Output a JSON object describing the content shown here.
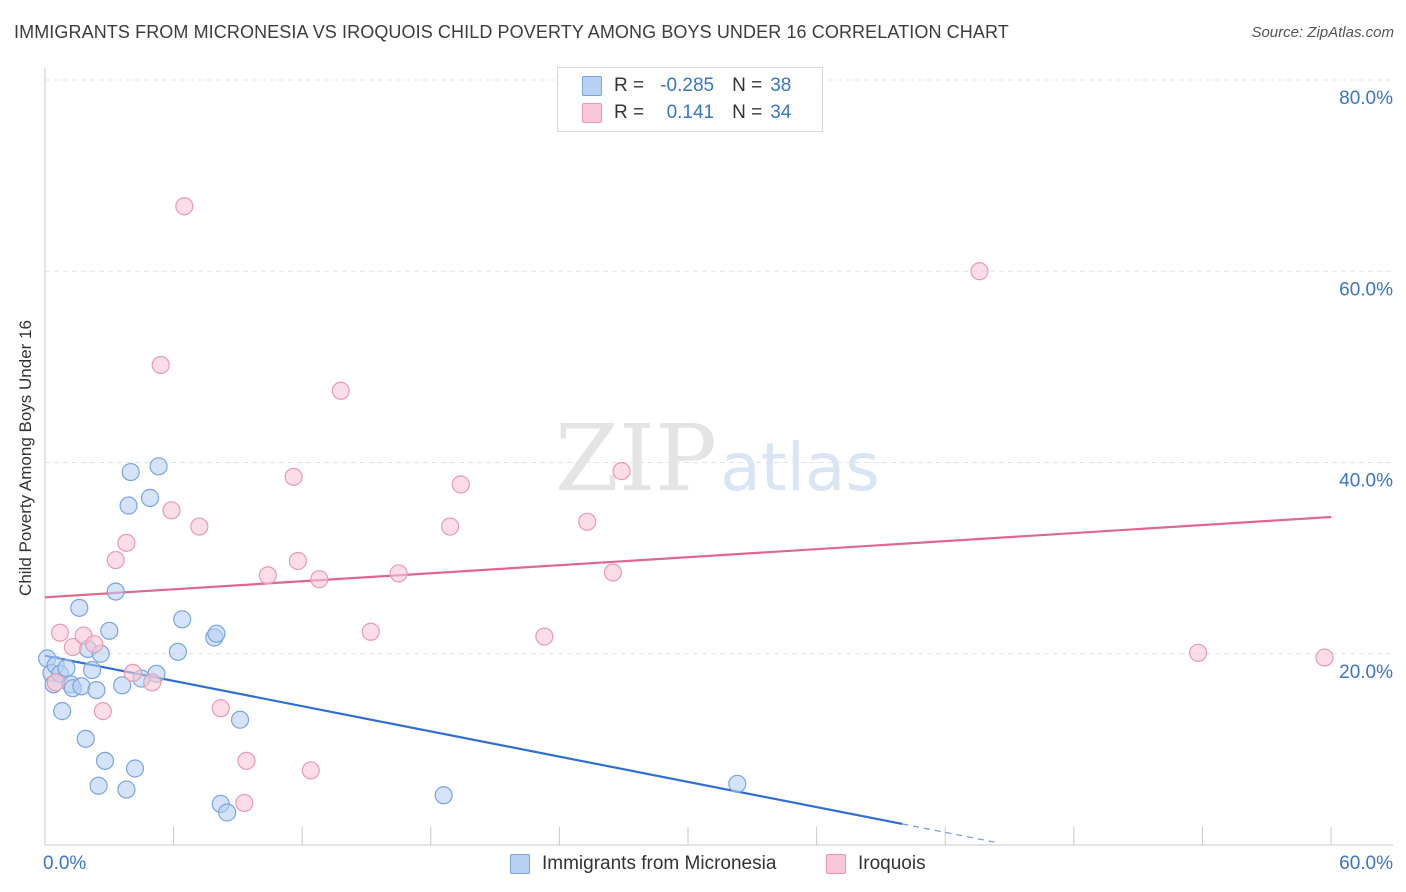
{
  "title": "IMMIGRANTS FROM MICRONESIA VS IROQUOIS CHILD POVERTY AMONG BOYS UNDER 16 CORRELATION CHART",
  "source": "Source: ZipAtlas.com",
  "watermark": {
    "zip": "ZIP",
    "atlas": "atlas"
  },
  "legend": {
    "r_label": "R =",
    "n_label": "N =",
    "rows": [
      {
        "r": "-0.285",
        "n": "38"
      },
      {
        "r": "0.141",
        "n": "34"
      }
    ]
  },
  "colors": {
    "blue_fill": "#b8d0f2",
    "blue_stroke": "#7aa4dc",
    "blue_line": "#2f6fd0",
    "pink_fill": "#f8c6d6",
    "pink_stroke": "#e89ab4",
    "pink_line": "#e0668e",
    "grid": "#e3e3e3",
    "tick_label": "#3a74c4"
  },
  "chart_data": {
    "type": "scatter",
    "title": "IMMIGRANTS FROM MICRONESIA VS IROQUOIS CHILD POVERTY AMONG BOYS UNDER 16 CORRELATION CHART",
    "xlabel": "",
    "ylabel": "Child Poverty Among Boys Under 16",
    "xlim": [
      0,
      60
    ],
    "ylim": [
      0,
      80
    ],
    "x_tick_labels": [
      "0.0%",
      "60.0%"
    ],
    "y_ticks": [
      {
        "value": 20,
        "label": "20.0%"
      },
      {
        "value": 40,
        "label": "40.0%"
      },
      {
        "value": 60,
        "label": "60.0%"
      },
      {
        "value": 80,
        "label": "80.0%"
      }
    ],
    "grid": true,
    "series": [
      {
        "name": "Immigrants from Micronesia",
        "color": "blue",
        "r": -0.285,
        "n": 38,
        "points": [
          [
            0.1,
            19.5
          ],
          [
            0.3,
            18.0
          ],
          [
            0.4,
            16.8
          ],
          [
            0.5,
            18.8
          ],
          [
            0.7,
            17.9
          ],
          [
            0.8,
            14.0
          ],
          [
            1.0,
            18.5
          ],
          [
            1.2,
            16.8
          ],
          [
            1.3,
            16.4
          ],
          [
            1.6,
            24.8
          ],
          [
            1.7,
            16.6
          ],
          [
            1.9,
            11.1
          ],
          [
            2.0,
            20.5
          ],
          [
            2.2,
            18.3
          ],
          [
            2.4,
            16.2
          ],
          [
            2.5,
            6.2
          ],
          [
            2.6,
            20.0
          ],
          [
            2.8,
            8.8
          ],
          [
            3.0,
            22.4
          ],
          [
            3.3,
            26.5
          ],
          [
            3.6,
            16.7
          ],
          [
            3.8,
            5.8
          ],
          [
            3.9,
            35.5
          ],
          [
            4.0,
            39.0
          ],
          [
            4.2,
            8.0
          ],
          [
            4.5,
            17.4
          ],
          [
            4.9,
            36.3
          ],
          [
            5.2,
            17.9
          ],
          [
            5.3,
            39.6
          ],
          [
            6.2,
            20.2
          ],
          [
            6.4,
            23.6
          ],
          [
            7.9,
            21.7
          ],
          [
            8.0,
            22.1
          ],
          [
            8.2,
            4.3
          ],
          [
            8.5,
            3.4
          ],
          [
            9.1,
            13.1
          ],
          [
            18.6,
            5.2
          ],
          [
            32.3,
            6.4
          ]
        ]
      },
      {
        "name": "Iroquois",
        "color": "pink",
        "r": 0.141,
        "n": 34,
        "points": [
          [
            0.5,
            17.0
          ],
          [
            0.7,
            22.2
          ],
          [
            1.3,
            20.7
          ],
          [
            1.8,
            21.9
          ],
          [
            2.3,
            21.0
          ],
          [
            2.7,
            14.0
          ],
          [
            3.3,
            29.8
          ],
          [
            3.8,
            31.6
          ],
          [
            4.1,
            18.0
          ],
          [
            5.0,
            17.0
          ],
          [
            5.4,
            50.2
          ],
          [
            5.9,
            35.0
          ],
          [
            6.5,
            66.8
          ],
          [
            7.2,
            33.3
          ],
          [
            8.2,
            14.3
          ],
          [
            9.4,
            8.8
          ],
          [
            9.3,
            4.4
          ],
          [
            10.4,
            28.2
          ],
          [
            11.6,
            38.5
          ],
          [
            11.8,
            29.7
          ],
          [
            12.4,
            7.8
          ],
          [
            12.8,
            27.8
          ],
          [
            13.8,
            47.5
          ],
          [
            15.2,
            22.3
          ],
          [
            16.5,
            28.4
          ],
          [
            18.9,
            33.3
          ],
          [
            19.4,
            37.7
          ],
          [
            23.3,
            21.8
          ],
          [
            25.3,
            33.8
          ],
          [
            26.5,
            28.5
          ],
          [
            26.9,
            39.1
          ],
          [
            43.6,
            60.0
          ],
          [
            53.8,
            20.1
          ],
          [
            59.7,
            19.6
          ]
        ]
      }
    ],
    "trend_lines": [
      {
        "series": "Immigrants from Micronesia",
        "x": [
          0,
          40
        ],
        "y": [
          19.8,
          2.2
        ],
        "dashed_extension_to_x": 44.5
      },
      {
        "series": "Iroquois",
        "x": [
          0,
          60
        ],
        "y": [
          25.9,
          34.3
        ]
      }
    ]
  },
  "bottom_legend": [
    "Immigrants from Micronesia",
    "Iroquois"
  ]
}
